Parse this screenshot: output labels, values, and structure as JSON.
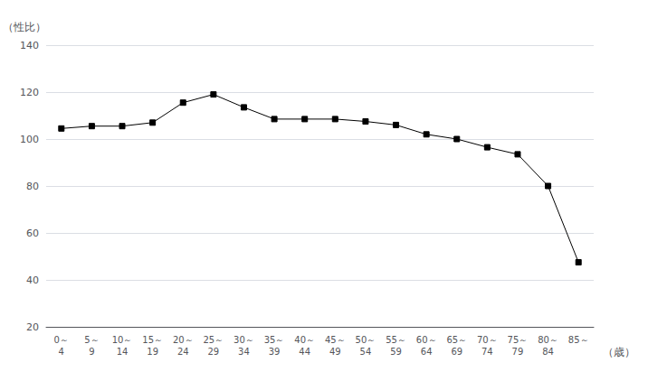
{
  "chart_data": {
    "type": "line",
    "ylabel": "（性比）",
    "xlabel": "（歳）",
    "categories": [
      "0～\n4",
      "5～\n9",
      "10～\n14",
      "15～\n19",
      "20～\n24",
      "25～\n29",
      "30～\n34",
      "35～\n39",
      "40～\n44",
      "45～\n49",
      "50～\n54",
      "55～\n59",
      "60～\n64",
      "65～\n69",
      "70～\n74",
      "75～\n79",
      "80～\n84",
      "85～"
    ],
    "values": [
      104.5,
      105.5,
      105.5,
      107.0,
      115.5,
      119.0,
      113.5,
      108.5,
      108.5,
      108.5,
      107.5,
      106.0,
      102.0,
      100.0,
      96.5,
      93.5,
      80.0,
      47.5
    ],
    "color": "#000000",
    "marker": "square",
    "ylim": [
      20,
      140
    ],
    "yticks": [
      20,
      40,
      60,
      80,
      100,
      120,
      140
    ],
    "grid": true
  }
}
